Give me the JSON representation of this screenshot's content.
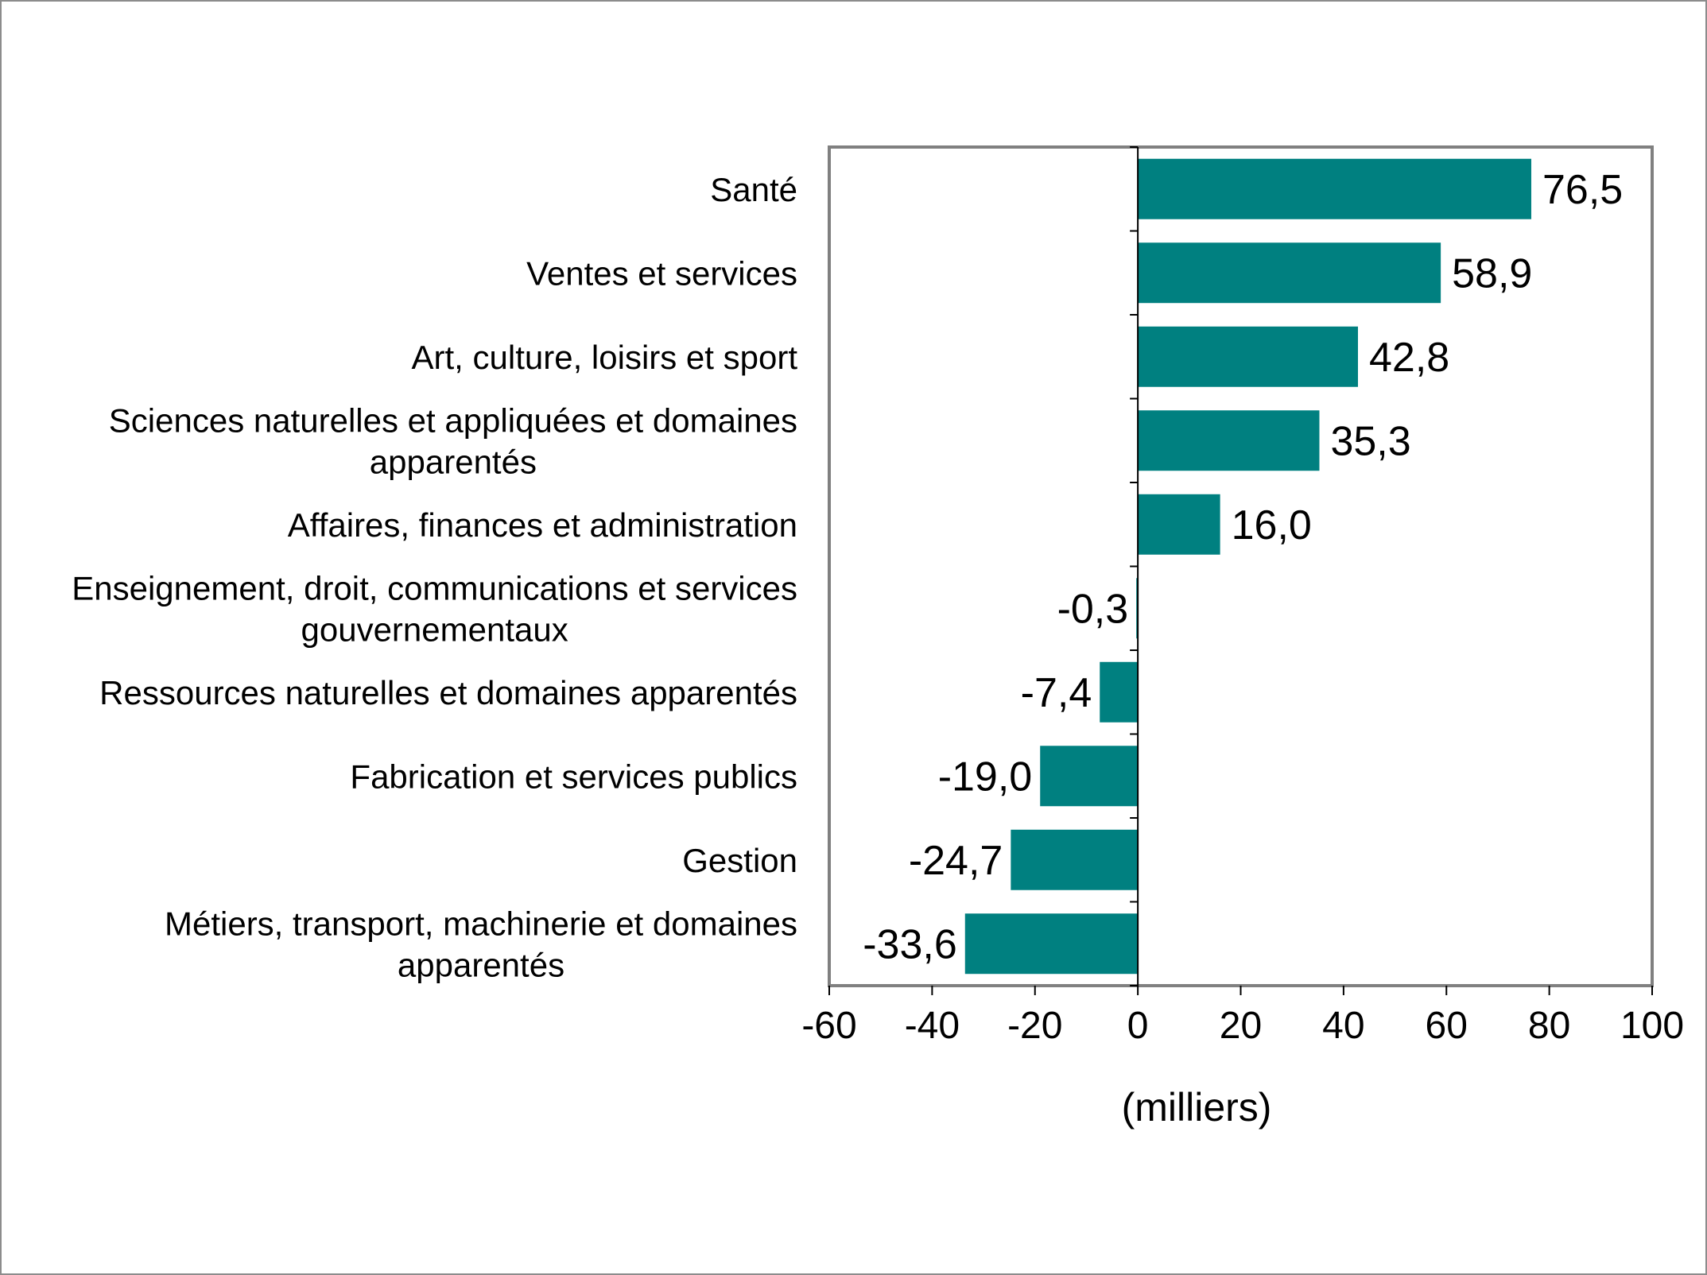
{
  "chart_data": {
    "type": "bar",
    "orientation": "horizontal",
    "categories": [
      [
        "Santé"
      ],
      [
        "Ventes et services"
      ],
      [
        "Art, culture, loisirs et sport"
      ],
      [
        "Sciences naturelles et appliquées et domaines",
        "apparentés"
      ],
      [
        "Affaires, finances et administration"
      ],
      [
        "Enseignement, droit, communications et services",
        "gouvernementaux"
      ],
      [
        "Ressources naturelles et domaines apparentés"
      ],
      [
        "Fabrication et services publics"
      ],
      [
        "Gestion"
      ],
      [
        "Métiers, transport, machinerie et domaines",
        "apparentés"
      ]
    ],
    "values": [
      76.5,
      58.9,
      42.8,
      35.3,
      16.0,
      -0.3,
      -7.4,
      -19.0,
      -24.7,
      -33.6
    ],
    "value_labels": [
      "76,5",
      "58,9",
      "42,8",
      "35,3",
      "16,0",
      "-0,3",
      "-7,4",
      "-19,0",
      "-24,7",
      "-33,6"
    ],
    "xlim": [
      -60,
      100
    ],
    "xticks": [
      -60,
      -40,
      -20,
      0,
      20,
      40,
      60,
      80,
      100
    ],
    "xtick_labels": [
      "-60",
      "-40",
      "-20",
      "0",
      "20",
      "40",
      "60",
      "80",
      "100"
    ],
    "xlabel": "(milliers)",
    "title": "",
    "grid": false,
    "legend": false,
    "colors": {
      "bar": "#008080",
      "plot_border": "#808080",
      "frame_border": "#8c8c8c"
    }
  }
}
